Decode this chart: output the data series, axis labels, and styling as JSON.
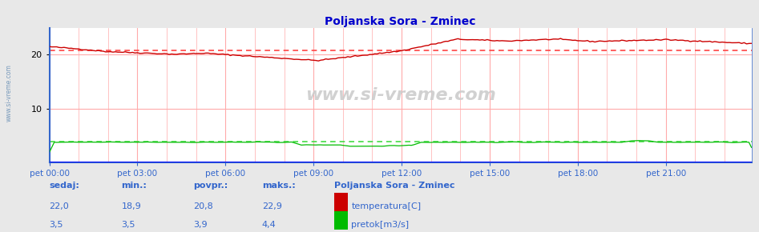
{
  "title": "Poljanska Sora - Zminec",
  "title_color": "#0000cc",
  "bg_color": "#e8e8e8",
  "plot_bg_color": "#ffffff",
  "x_ticks_labels": [
    "pet 00:00",
    "pet 03:00",
    "pet 06:00",
    "pet 09:00",
    "pet 12:00",
    "pet 15:00",
    "pet 18:00",
    "pet 21:00"
  ],
  "y_ticks": [
    10,
    20
  ],
  "y_max": 25,
  "y_min": 0,
  "temp_color": "#cc0000",
  "temp_avg_color": "#ff4444",
  "flow_color": "#00bb00",
  "flow_avg_color": "#44dd44",
  "axis_color": "#3366cc",
  "grid_v_color": "#ffaaaa",
  "grid_h_color": "#ffaaaa",
  "temp_min": 18.9,
  "temp_max": 22.9,
  "temp_avg": 20.8,
  "temp_current": 22.0,
  "flow_min": 3.5,
  "flow_max": 4.4,
  "flow_avg": 3.9,
  "flow_current": 3.5,
  "legend_title": "Poljanska Sora - Zminec",
  "legend_items": [
    "temperatura[C]",
    "pretok[m3/s]"
  ],
  "legend_colors": [
    "#cc0000",
    "#00bb00"
  ],
  "table_headers": [
    "sedaj:",
    "min.:",
    "povpr.:",
    "maks.:"
  ],
  "watermark": "www.si-vreme.com"
}
